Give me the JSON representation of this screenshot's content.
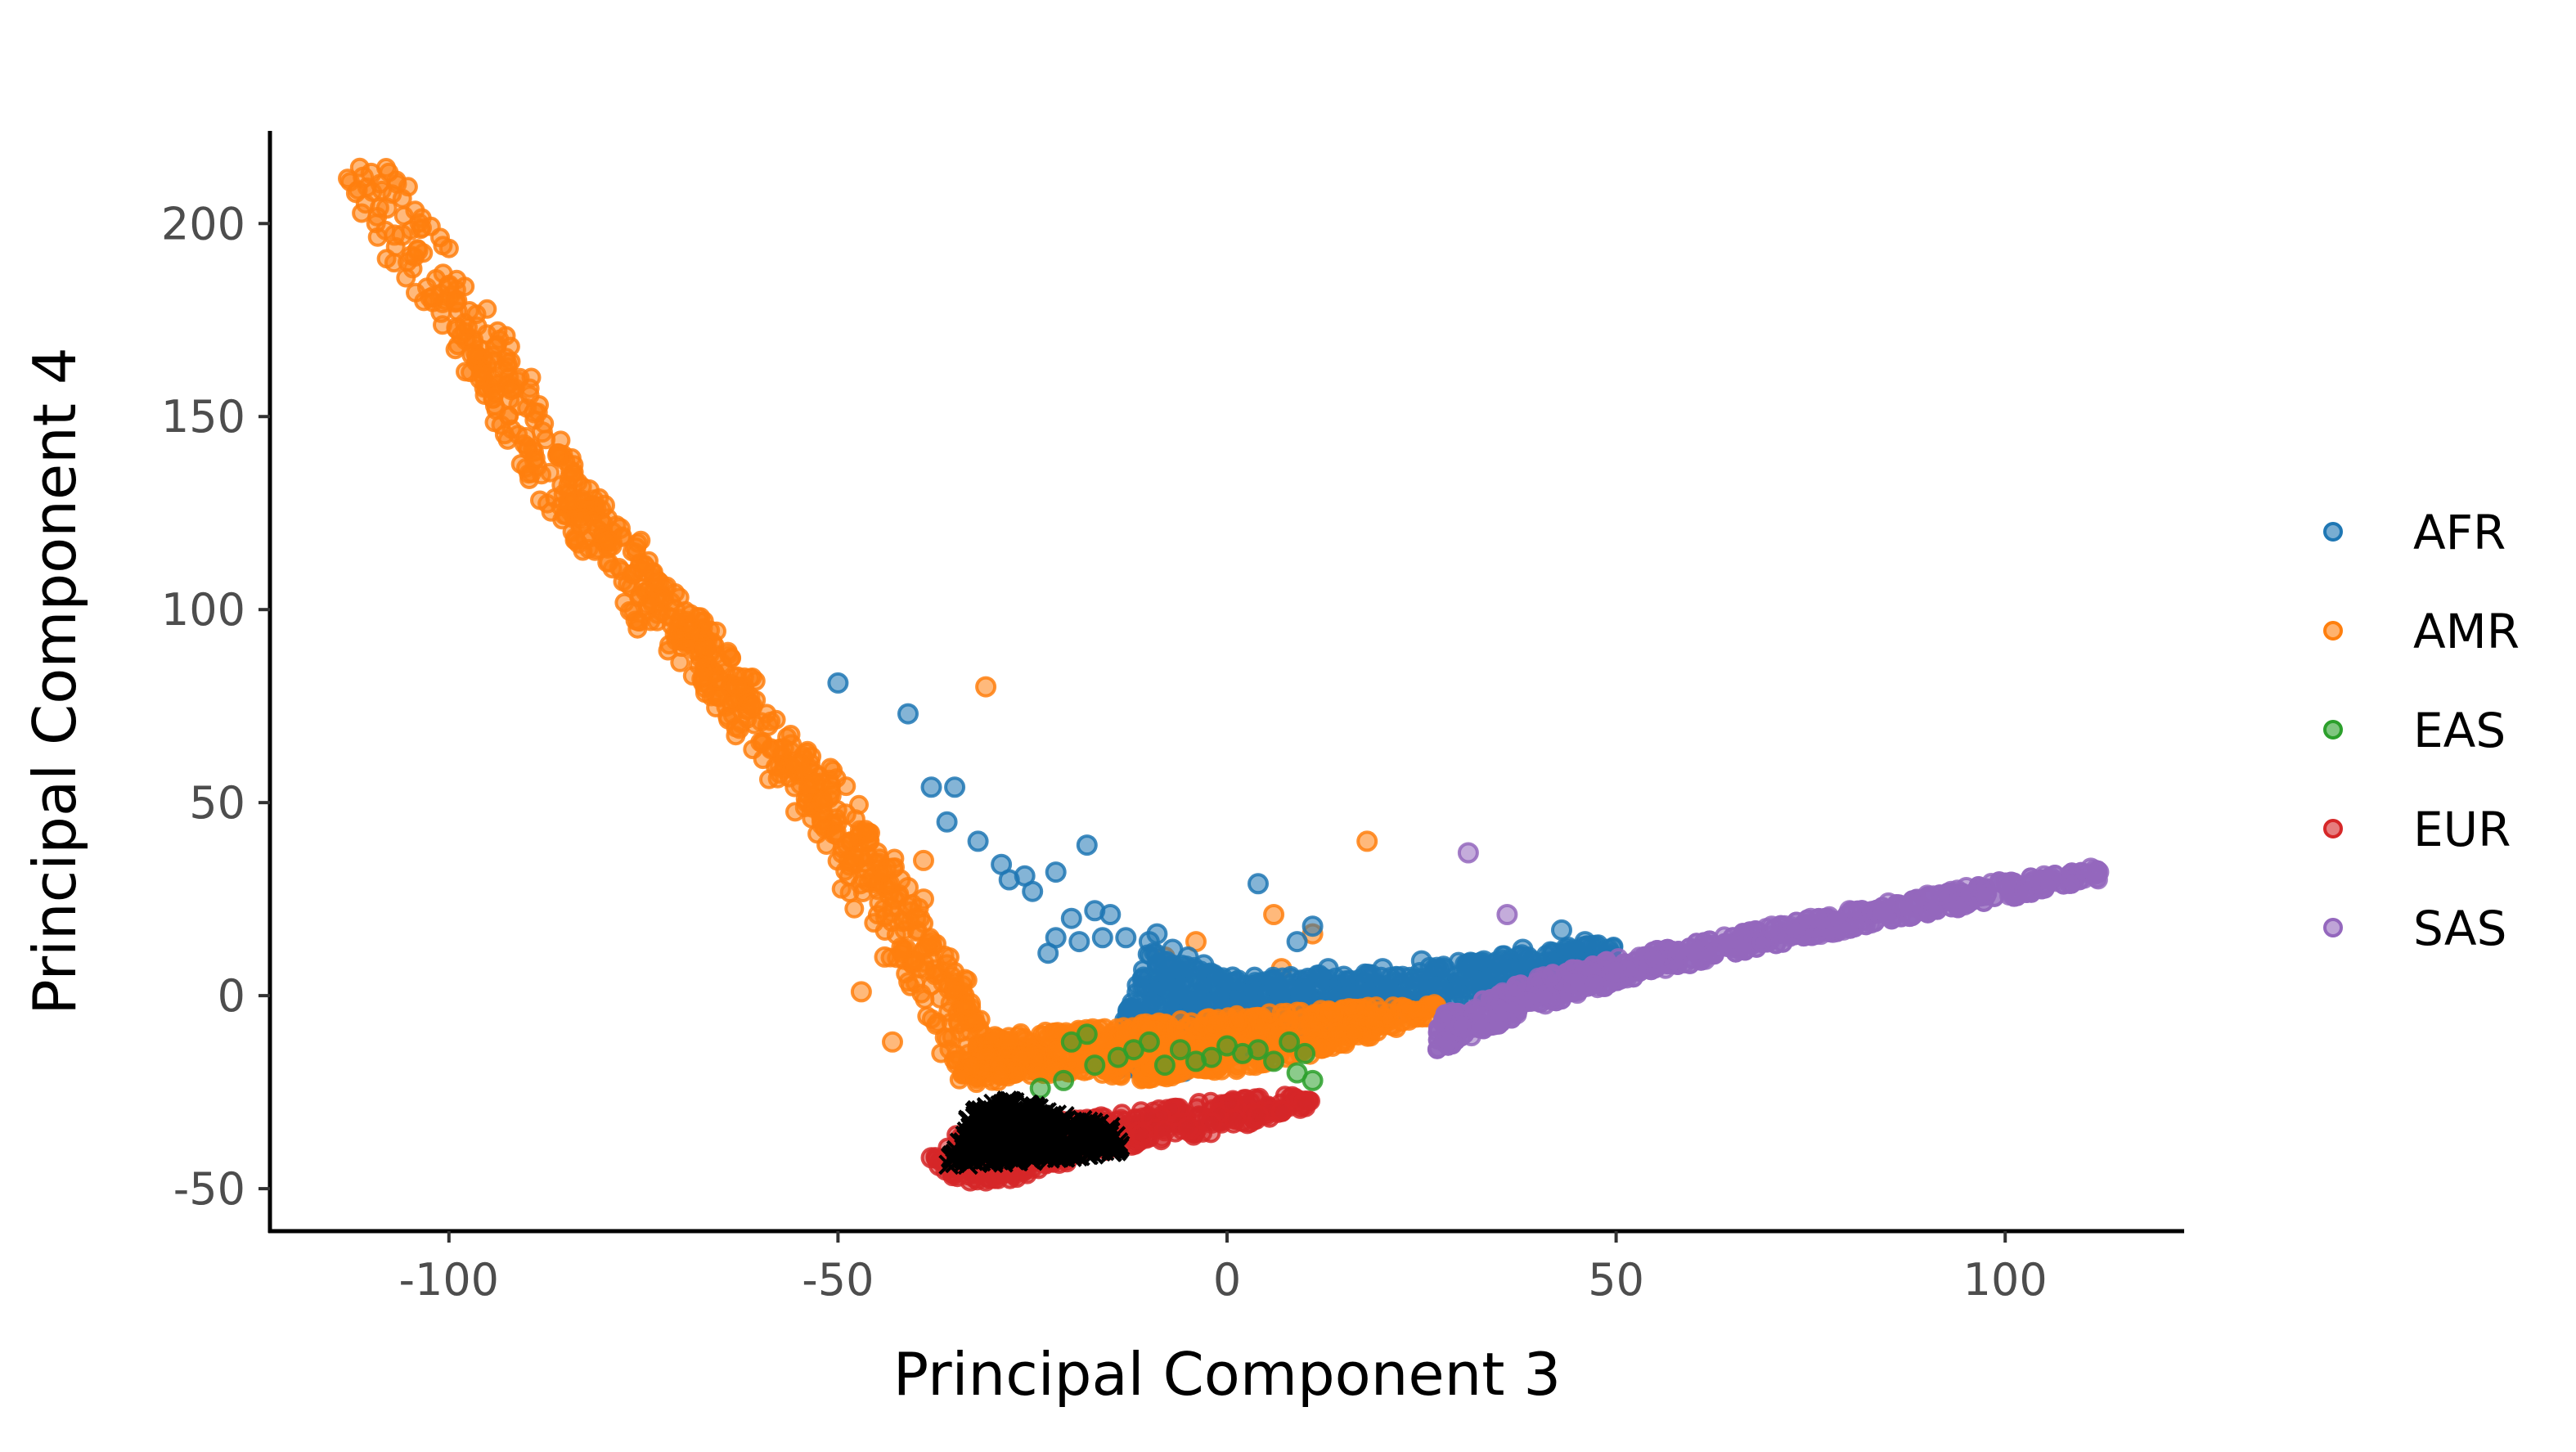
{
  "chart_data": {
    "type": "scatter",
    "title": "",
    "xlabel": "Principal Component 3",
    "ylabel": "Principal Component 4",
    "xlim": [
      -123,
      123
    ],
    "ylim": [
      -61,
      224
    ],
    "x_ticks": [
      -100,
      -50,
      0,
      50,
      100
    ],
    "x_tick_labels": [
      "-100",
      "-50",
      "0",
      "50",
      "100"
    ],
    "y_ticks": [
      -50,
      0,
      50,
      100,
      150,
      200
    ],
    "y_tick_labels": [
      "-50",
      "0",
      "50",
      "100",
      "150",
      "200"
    ],
    "grid": false,
    "legend_position": "right",
    "marker_style": "open circles with semi-transparent fill",
    "series": [
      {
        "name": "AFR",
        "color": "#1f77b4",
        "description": "dense cluster from x≈-13 to 50, y≈-20 to 15, with scattered outliers",
        "cluster_outline": [
          [
            -14,
            -10
          ],
          [
            -10,
            12
          ],
          [
            0,
            5
          ],
          [
            20,
            6
          ],
          [
            40,
            12
          ],
          [
            50,
            14
          ],
          [
            50,
            4
          ],
          [
            30,
            -2
          ],
          [
            10,
            -10
          ],
          [
            -5,
            -20
          ],
          [
            -14,
            -20
          ]
        ],
        "points": [
          [
            -50,
            81
          ],
          [
            -41,
            73
          ],
          [
            -38,
            54
          ],
          [
            -35,
            54
          ],
          [
            -36,
            45
          ],
          [
            -32,
            40
          ],
          [
            -29,
            34
          ],
          [
            -28,
            30
          ],
          [
            -26,
            31
          ],
          [
            -22,
            32
          ],
          [
            -18,
            39
          ],
          [
            -25,
            27
          ],
          [
            -20,
            20
          ],
          [
            -17,
            22
          ],
          [
            -15,
            21
          ],
          [
            -19,
            14
          ],
          [
            -22,
            15
          ],
          [
            -23,
            11
          ],
          [
            -16,
            15
          ],
          [
            -13,
            15
          ],
          [
            -10,
            14
          ],
          [
            -9,
            16
          ],
          [
            -7,
            12
          ],
          [
            -5,
            10
          ],
          [
            -3,
            8
          ],
          [
            4,
            29
          ],
          [
            9,
            14
          ],
          [
            11,
            18
          ],
          [
            13,
            7
          ],
          [
            15,
            5
          ],
          [
            20,
            7
          ],
          [
            25,
            9
          ],
          [
            28,
            7
          ],
          [
            33,
            9
          ],
          [
            38,
            12
          ],
          [
            43,
            17
          ],
          [
            46,
            14
          ],
          [
            49,
            12
          ]
        ]
      },
      {
        "name": "AMR",
        "color": "#ff7f0e",
        "description": "long arm from (-110, 212) down to (-35, -20), plus band from x≈-35 to 27, y≈-30 to -2",
        "arm_band": [
          [
            -110,
            212
          ],
          [
            -100,
            180
          ],
          [
            -95,
            165
          ],
          [
            -90,
            150
          ],
          [
            -85,
            130
          ],
          [
            -80,
            120
          ],
          [
            -75,
            105
          ],
          [
            -70,
            95
          ],
          [
            -65,
            82
          ],
          [
            -60,
            70
          ],
          [
            -55,
            58
          ],
          [
            -50,
            45
          ],
          [
            -45,
            28
          ],
          [
            -40,
            12
          ],
          [
            -36,
            0
          ],
          [
            -34,
            -12
          ],
          [
            -30,
            -20
          ]
        ],
        "lower_band": [
          [
            -35,
            -22
          ],
          [
            -20,
            -20
          ],
          [
            -10,
            -22
          ],
          [
            0,
            -20
          ],
          [
            10,
            -16
          ],
          [
            20,
            -10
          ],
          [
            27,
            -5
          ],
          [
            27,
            -2
          ],
          [
            15,
            -3
          ],
          [
            0,
            -5
          ],
          [
            -15,
            -8
          ],
          [
            -30,
            -10
          ]
        ],
        "points": [
          [
            -111,
            212
          ],
          [
            -110,
            213
          ],
          [
            -108,
            204
          ],
          [
            -107,
            197
          ],
          [
            -106,
            197
          ],
          [
            -104,
            193
          ],
          [
            -102,
            181
          ],
          [
            -101,
            177
          ],
          [
            -100,
            184
          ],
          [
            -99,
            180
          ],
          [
            -99,
            173
          ],
          [
            -97,
            166
          ],
          [
            -94,
            168
          ],
          [
            -93,
            162
          ],
          [
            -92,
            157
          ],
          [
            -91,
            153
          ],
          [
            -89,
            151
          ],
          [
            -88,
            146
          ],
          [
            -86,
            140
          ],
          [
            -84,
            134
          ],
          [
            -82,
            131
          ],
          [
            -80,
            127
          ],
          [
            -78,
            121
          ],
          [
            -76,
            116
          ],
          [
            -75,
            110
          ],
          [
            -73,
            107
          ],
          [
            -71,
            100
          ],
          [
            -69,
            95
          ],
          [
            -67,
            90
          ],
          [
            -65,
            86
          ],
          [
            -63,
            80
          ],
          [
            -61,
            75
          ],
          [
            -59,
            70
          ],
          [
            -57,
            64
          ],
          [
            -55,
            60
          ],
          [
            -53,
            55
          ],
          [
            -52,
            50
          ],
          [
            -49,
            47
          ],
          [
            -47,
            42
          ],
          [
            -45,
            37
          ],
          [
            -43,
            33
          ],
          [
            -41,
            28
          ],
          [
            -40,
            20
          ],
          [
            -38,
            14
          ],
          [
            -36,
            8
          ],
          [
            -35,
            2
          ],
          [
            -33,
            -2
          ],
          [
            -42,
            30
          ],
          [
            -39,
            25
          ],
          [
            -44,
            10
          ],
          [
            -43,
            -12
          ],
          [
            -47,
            1
          ],
          [
            -31,
            80
          ],
          [
            -39,
            35
          ],
          [
            -46,
            40
          ],
          [
            -48,
            36
          ],
          [
            -56,
            65
          ],
          [
            -51,
            53
          ],
          [
            6,
            21
          ],
          [
            11,
            16
          ],
          [
            18,
            40
          ],
          [
            7,
            7
          ],
          [
            -8,
            10
          ],
          [
            -4,
            14
          ]
        ]
      },
      {
        "name": "EAS",
        "color": "#2ca02c",
        "description": "small group of points within the central band around x≈-25 to 12, y≈-25 to -10",
        "points": [
          [
            -24,
            -24
          ],
          [
            -21,
            -22
          ],
          [
            -20,
            -12
          ],
          [
            -18,
            -10
          ],
          [
            -14,
            -16
          ],
          [
            -10,
            -12
          ],
          [
            -6,
            -14
          ],
          [
            -4,
            -17
          ],
          [
            -2,
            -16
          ],
          [
            0,
            -13
          ],
          [
            2,
            -15
          ],
          [
            4,
            -14
          ],
          [
            6,
            -17
          ],
          [
            8,
            -12
          ],
          [
            9,
            -20
          ],
          [
            10,
            -15
          ],
          [
            11,
            -22
          ],
          [
            -17,
            -18
          ],
          [
            -12,
            -14
          ],
          [
            -8,
            -18
          ]
        ]
      },
      {
        "name": "EUR",
        "color": "#d62728",
        "description": "narrow band from x≈-38 to 12, y≈-48 to -25",
        "cluster_outline": [
          [
            -38,
            -42
          ],
          [
            -35,
            -48
          ],
          [
            -28,
            -48
          ],
          [
            -15,
            -40
          ],
          [
            0,
            -35
          ],
          [
            12,
            -28
          ],
          [
            10,
            -25
          ],
          [
            -5,
            -28
          ],
          [
            -20,
            -32
          ],
          [
            -35,
            -36
          ]
        ],
        "points": [
          [
            -38,
            -42
          ],
          [
            -37,
            -44
          ],
          [
            -35,
            -46
          ],
          [
            -33,
            -48
          ],
          [
            -31,
            -48
          ],
          [
            -29,
            -46
          ],
          [
            -26,
            -45
          ],
          [
            -23,
            -43
          ],
          [
            -20,
            -41
          ],
          [
            -17,
            -39
          ],
          [
            -14,
            -37
          ],
          [
            -11,
            -36
          ],
          [
            -8,
            -35
          ],
          [
            -5,
            -34
          ],
          [
            -2,
            -33
          ],
          [
            1,
            -32
          ],
          [
            4,
            -31
          ],
          [
            7,
            -30
          ],
          [
            10,
            -28
          ]
        ]
      },
      {
        "name": "SAS",
        "color": "#9467bd",
        "description": "long band from x≈27 to 112, y≈-18 to 33",
        "cluster_outline": [
          [
            27,
            -15
          ],
          [
            27,
            -5
          ],
          [
            40,
            5
          ],
          [
            55,
            12
          ],
          [
            70,
            18
          ],
          [
            85,
            24
          ],
          [
            100,
            30
          ],
          [
            112,
            33
          ],
          [
            112,
            30
          ],
          [
            100,
            25
          ],
          [
            85,
            19
          ],
          [
            70,
            13
          ],
          [
            55,
            6
          ],
          [
            40,
            -3
          ]
        ],
        "points": [
          [
            31,
            37
          ],
          [
            36,
            21
          ],
          [
            111,
            33
          ],
          [
            112,
            32
          ],
          [
            105,
            31
          ],
          [
            100,
            29
          ],
          [
            95,
            28
          ],
          [
            90,
            26
          ],
          [
            85,
            24
          ],
          [
            80,
            22
          ],
          [
            75,
            20
          ],
          [
            70,
            18
          ],
          [
            65,
            15
          ],
          [
            60,
            12
          ],
          [
            55,
            10
          ],
          [
            50,
            6
          ],
          [
            45,
            3
          ],
          [
            40,
            0
          ],
          [
            35,
            -4
          ],
          [
            30,
            -8
          ],
          [
            28,
            -12
          ]
        ]
      },
      {
        "name": "",
        "color": "#000000",
        "marker": "x",
        "description": "dense black cross markers in the lower valley",
        "cluster_outline": [
          [
            -36,
            -44
          ],
          [
            -33,
            -30
          ],
          [
            -28,
            -27
          ],
          [
            -22,
            -30
          ],
          [
            -15,
            -34
          ],
          [
            -13,
            -40
          ],
          [
            -20,
            -42
          ],
          [
            -30,
            -44
          ]
        ],
        "points": [
          [
            -34,
            -42
          ],
          [
            -33,
            -38
          ],
          [
            -32,
            -34
          ],
          [
            -31,
            -30
          ],
          [
            -30,
            -28
          ],
          [
            -29,
            -32
          ],
          [
            -28,
            -36
          ],
          [
            -27,
            -40
          ],
          [
            -26,
            -37
          ],
          [
            -25,
            -34
          ],
          [
            -24,
            -31
          ],
          [
            -23,
            -35
          ],
          [
            -22,
            -38
          ],
          [
            -21,
            -36
          ],
          [
            -20,
            -33
          ],
          [
            -19,
            -37
          ],
          [
            -18,
            -35
          ],
          [
            -17,
            -39
          ],
          [
            -16,
            -36
          ],
          [
            -15,
            -34
          ],
          [
            -14,
            -38
          ]
        ]
      }
    ],
    "legend": [
      {
        "label": "AFR",
        "color": "#1f77b4"
      },
      {
        "label": "AMR",
        "color": "#ff7f0e"
      },
      {
        "label": "EAS",
        "color": "#2ca02c"
      },
      {
        "label": "EUR",
        "color": "#d62728"
      },
      {
        "label": "SAS",
        "color": "#9467bd"
      }
    ]
  }
}
